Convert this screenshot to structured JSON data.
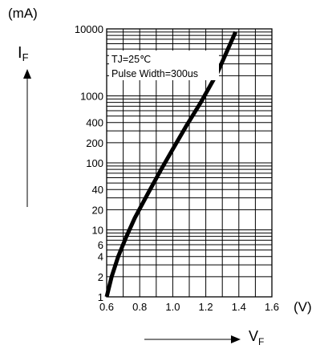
{
  "chart_data": {
    "type": "line",
    "y_unit": "(mA)",
    "x_unit": "(V)",
    "ylabel_main": "I",
    "ylabel_sub": "F",
    "xlabel_main": "V",
    "xlabel_sub": "F",
    "y_scale": "log",
    "grid": true,
    "xlim": [
      0.6,
      1.6
    ],
    "ylim": [
      1,
      10000
    ],
    "x_ticks": [
      "0.6",
      "0.8",
      "1.0",
      "1.2",
      "1.4",
      "1.6"
    ],
    "x_tick_values": [
      0.6,
      0.8,
      1.0,
      1.2,
      1.4,
      1.6
    ],
    "y_ticks": [
      "1",
      "2",
      "4",
      "6",
      "10",
      "20",
      "40",
      "100",
      "200",
      "400",
      "1000",
      "10000"
    ],
    "y_tick_values": [
      1,
      2,
      4,
      6,
      10,
      20,
      40,
      100,
      200,
      400,
      1000,
      10000
    ],
    "annotation_line1": "TJ=25℃",
    "annotation_line2": "Pulse Width=300us",
    "series": [
      {
        "color": "#000000",
        "x": [
          0.6,
          0.63,
          0.67,
          0.72,
          0.77,
          0.85,
          0.93,
          1.0,
          1.08,
          1.17,
          1.27,
          1.38
        ],
        "y": [
          1,
          2,
          4,
          8,
          15,
          35,
          80,
          160,
          350,
          800,
          2200,
          9000
        ]
      }
    ]
  }
}
